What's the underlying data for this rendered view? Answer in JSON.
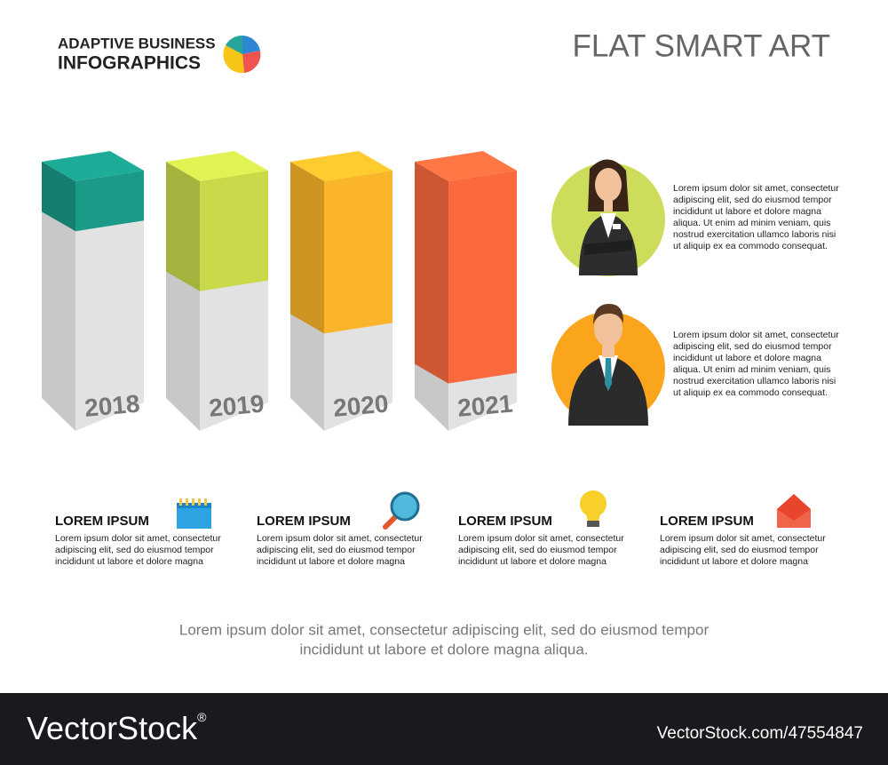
{
  "header": {
    "title": [
      "ADAPTIVE BUSINESS",
      "INFOGRAPHICS"
    ],
    "subtitle": "FLAT SMART ART"
  },
  "chart_data": {
    "type": "bar",
    "categories": [
      "2018",
      "2019",
      "2020",
      "2021"
    ],
    "values": [
      20,
      44,
      61,
      81
    ],
    "colors": [
      "#1a9a87",
      "#c9d94a",
      "#fbb52a",
      "#fb6a3e"
    ],
    "ylim": [
      0,
      100
    ]
  },
  "profiles": [
    {
      "lines": [
        "Lorem ipsum dolor sit amet, consectetur",
        "adipiscing elit, sed do eiusmod tempor",
        "incididunt ut labore et dolore magna",
        "aliqua. Ut enim ad minim veniam, quis",
        "nostrud exercitation ullamco laboris nisi",
        "ut aliquip ex ea commodo consequat."
      ]
    },
    {
      "lines": [
        "Lorem ipsum dolor sit amet, consectetur",
        "adipiscing elit, sed do eiusmod tempor",
        "incididunt ut labore et dolore magna",
        "aliqua. Ut enim ad minim veniam, quis",
        "nostrud exercitation ullamco laboris nisi",
        "ut aliquip ex ea commodo consequat."
      ]
    }
  ],
  "items": [
    {
      "title": "LOREM IPSUM",
      "lines": [
        "Lorem ipsum dolor sit amet, consectetur",
        "adipiscing elit, sed do eiusmod tempor",
        "incididunt ut labore et dolore magna"
      ]
    },
    {
      "title": "LOREM IPSUM",
      "lines": [
        "Lorem ipsum dolor sit amet, consectetur",
        "adipiscing elit, sed do eiusmod tempor",
        "incididunt ut labore et dolore magna"
      ]
    },
    {
      "title": "LOREM IPSUM",
      "lines": [
        "Lorem ipsum dolor sit amet, consectetur",
        "adipiscing elit, sed do eiusmod tempor",
        "incididunt ut labore et dolore magna"
      ]
    },
    {
      "title": "LOREM IPSUM",
      "lines": [
        "Lorem ipsum dolor sit amet, consectetur",
        "adipiscing elit, sed do eiusmod tempor",
        "incididunt ut labore et dolore magna"
      ]
    }
  ],
  "footer": [
    "Lorem ipsum dolor sit amet, consectetur adipiscing elit, sed do eiusmod tempor",
    "incididunt ut labore et dolore magna aliqua."
  ],
  "watermark": {
    "brand": "VectorStock",
    "mark": "®",
    "id": "VectorStock.com/47554847"
  }
}
